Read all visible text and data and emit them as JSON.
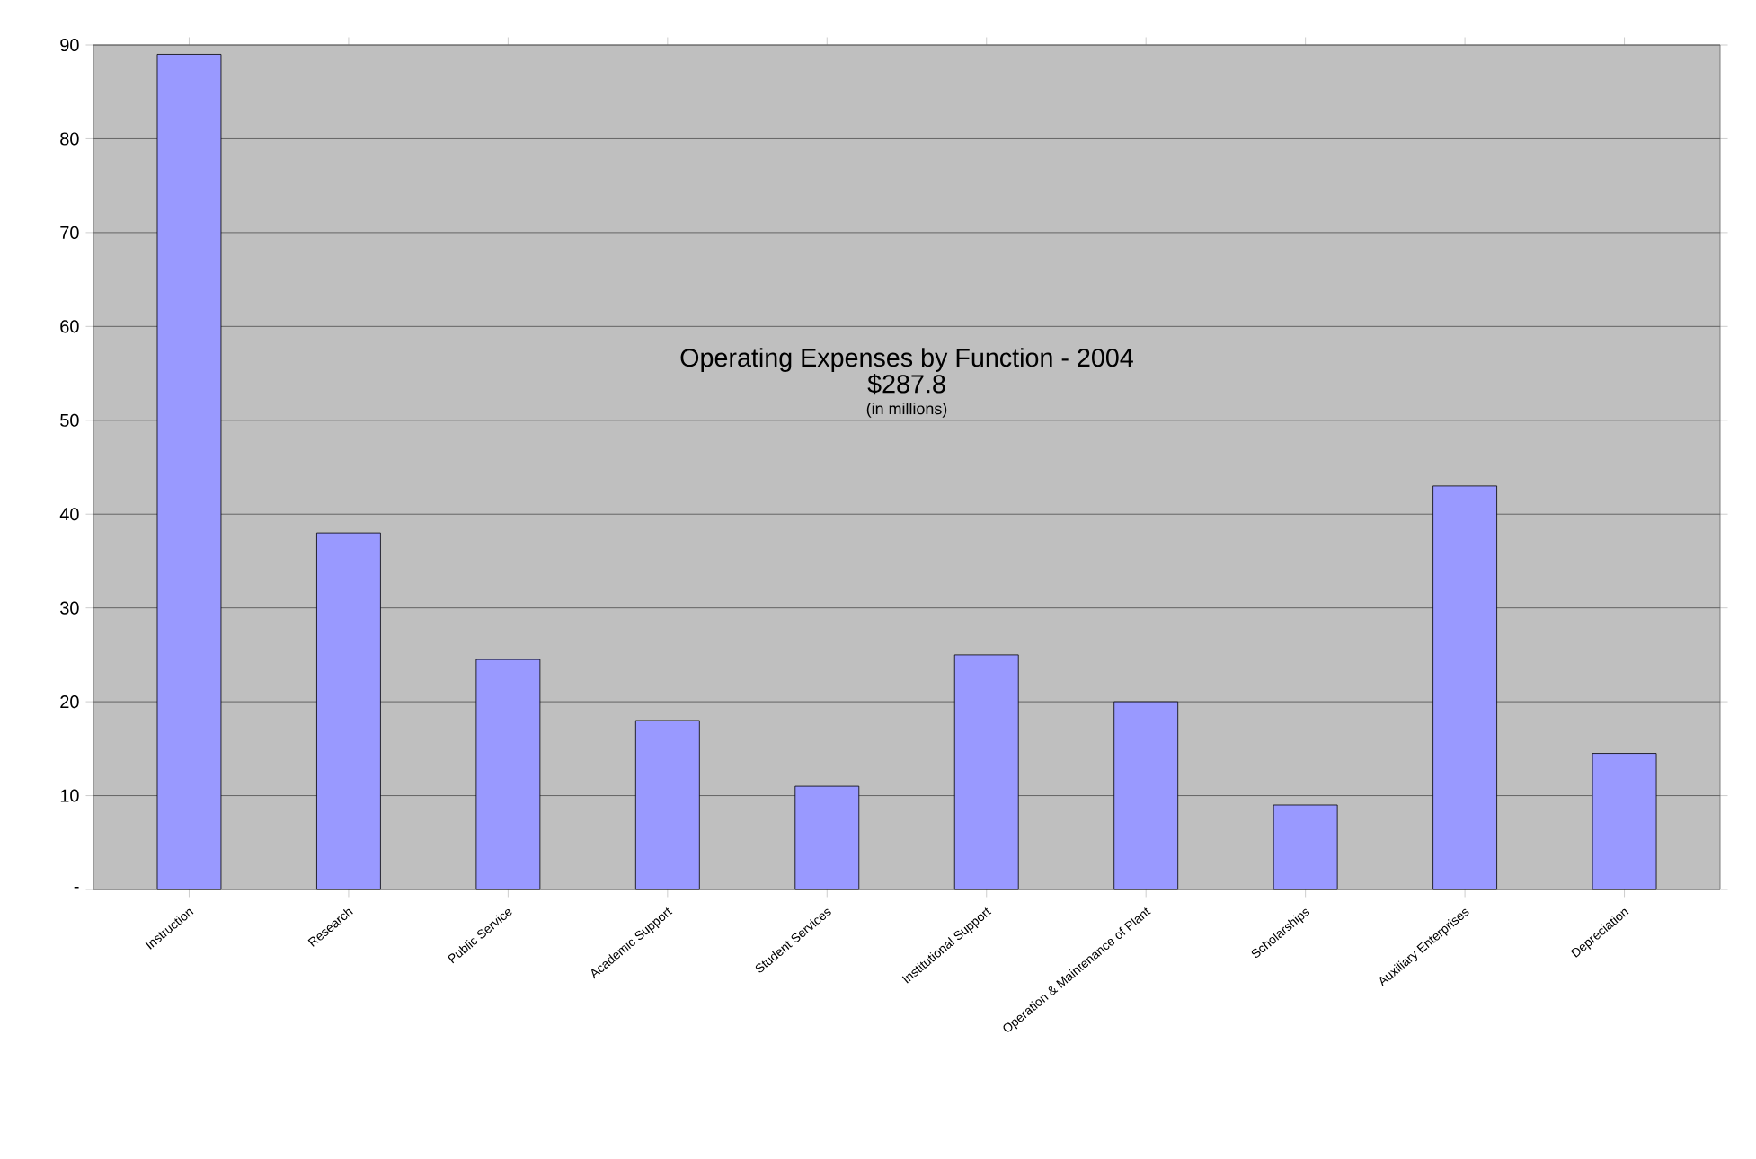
{
  "chart_data": {
    "type": "bar",
    "title": "Operating Expenses by Function - 2004",
    "subtitle": "$287.8",
    "annotations": [
      "(in millions)"
    ],
    "categories": [
      "Instruction",
      "Research",
      "Public Service",
      "Academic Support",
      "Student Services",
      "Institutional Support",
      "Operation & Maintenance of Plant",
      "Scholarships",
      "Auxiliary Enterprises",
      "Depreciation"
    ],
    "values": [
      89,
      38,
      24.5,
      18,
      11,
      25,
      20,
      9,
      43,
      14.5
    ],
    "color": "#9999ff",
    "ylim": [
      0,
      90
    ],
    "yticks": [
      {
        "value": 0,
        "label": "-"
      },
      10,
      20,
      30,
      40,
      50,
      60,
      70,
      80,
      90
    ],
    "grid": "y"
  }
}
